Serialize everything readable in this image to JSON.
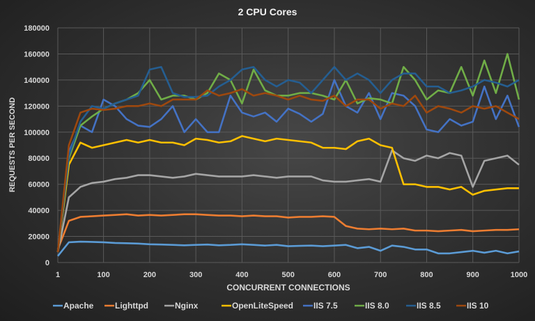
{
  "chart_data": {
    "type": "line",
    "title": "2 CPU Cores",
    "xlabel": "CONCURRENT CONNECTIONS",
    "ylabel": "REQUESTS PER SECOND",
    "xlim": [
      1,
      1000
    ],
    "ylim": [
      0,
      180000
    ],
    "x_ticks": [
      "1",
      "100",
      "200",
      "300",
      "400",
      "500",
      "600",
      "700",
      "800",
      "900",
      "1000"
    ],
    "y_ticks": [
      "0",
      "20000",
      "40000",
      "60000",
      "80000",
      "100000",
      "120000",
      "140000",
      "160000",
      "180000"
    ],
    "grid": true,
    "legend": "bottom",
    "x": [
      1,
      25,
      50,
      75,
      100,
      125,
      150,
      175,
      200,
      225,
      250,
      275,
      300,
      325,
      350,
      375,
      400,
      425,
      450,
      475,
      500,
      525,
      550,
      575,
      600,
      625,
      650,
      675,
      700,
      725,
      750,
      775,
      800,
      825,
      850,
      875,
      900,
      925,
      950,
      975,
      1000
    ],
    "series": [
      {
        "name": "Apache",
        "color": "#5b9bd5",
        "values": [
          5000,
          15500,
          16000,
          15800,
          15500,
          15000,
          14800,
          14500,
          14000,
          13800,
          13500,
          13200,
          13500,
          13800,
          13200,
          13500,
          14000,
          13500,
          13000,
          13500,
          12500,
          12800,
          13000,
          12500,
          13000,
          13500,
          11000,
          12000,
          9000,
          13000,
          12000,
          10000,
          10000,
          7000,
          7000,
          8000,
          9000,
          7500,
          9000,
          7000,
          8500
        ]
      },
      {
        "name": "Lighttpd",
        "color": "#ed7d31",
        "values": [
          10000,
          32000,
          35000,
          35500,
          36000,
          36500,
          37000,
          36000,
          36500,
          36000,
          36500,
          37000,
          37000,
          36500,
          36000,
          36000,
          35500,
          36000,
          35500,
          35500,
          34500,
          35000,
          35000,
          35500,
          35000,
          28000,
          26000,
          25500,
          26000,
          25500,
          26000,
          24500,
          24500,
          24000,
          24500,
          25000,
          24000,
          24500,
          25000,
          25000,
          25500
        ]
      },
      {
        "name": "Nginx",
        "color": "#a5a5a5",
        "values": [
          8000,
          50000,
          58000,
          61000,
          62000,
          64000,
          65000,
          67000,
          67000,
          66000,
          65000,
          66000,
          68000,
          67000,
          66000,
          66000,
          66000,
          67000,
          66000,
          65000,
          66000,
          66000,
          66000,
          63000,
          62000,
          62000,
          63000,
          64000,
          62000,
          86000,
          80000,
          78000,
          82000,
          80000,
          84000,
          82000,
          58000,
          78000,
          80000,
          82000,
          75000
        ]
      },
      {
        "name": "OpenLiteSpeed",
        "color": "#ffc000",
        "values": [
          8000,
          75000,
          92000,
          88000,
          90000,
          92000,
          94000,
          92000,
          94000,
          92000,
          92000,
          90000,
          95000,
          94000,
          92000,
          93000,
          97000,
          95000,
          93000,
          95000,
          94000,
          93000,
          92000,
          88000,
          88000,
          87000,
          93000,
          95000,
          90000,
          88000,
          60000,
          60000,
          58000,
          58000,
          56000,
          58000,
          52000,
          55000,
          56000,
          57000,
          57000
        ]
      },
      {
        "name": "IIS 7.5",
        "color": "#4472c4",
        "values": [
          8000,
          85000,
          105000,
          100000,
          125000,
          120000,
          110000,
          105000,
          104000,
          110000,
          120000,
          100000,
          110000,
          100000,
          100000,
          128000,
          115000,
          112000,
          115000,
          108000,
          118000,
          114000,
          108000,
          114000,
          140000,
          120000,
          115000,
          130000,
          110000,
          130000,
          128000,
          120000,
          102000,
          100000,
          110000,
          105000,
          108000,
          135000,
          110000,
          128000,
          104000
        ]
      },
      {
        "name": "IIS 8.0",
        "color": "#70ad47",
        "values": [
          8000,
          80000,
          105000,
          112000,
          118000,
          122000,
          125000,
          130000,
          140000,
          125000,
          128000,
          128000,
          125000,
          130000,
          145000,
          140000,
          122000,
          148000,
          132000,
          128000,
          128000,
          130000,
          130000,
          128000,
          125000,
          140000,
          122000,
          126000,
          125000,
          122000,
          150000,
          140000,
          125000,
          132000,
          130000,
          150000,
          128000,
          155000,
          130000,
          160000,
          125000
        ]
      },
      {
        "name": "IIS 8.5",
        "color": "#255e91",
        "values": [
          8000,
          82000,
          108000,
          120000,
          118000,
          122000,
          125000,
          128000,
          148000,
          150000,
          130000,
          127000,
          127000,
          128000,
          135000,
          140000,
          148000,
          150000,
          140000,
          135000,
          140000,
          138000,
          130000,
          140000,
          150000,
          140000,
          145000,
          140000,
          130000,
          140000,
          145000,
          145000,
          135000,
          135000,
          130000,
          132000,
          135000,
          140000,
          138000,
          135000,
          140000
        ]
      },
      {
        "name": "IIS 10",
        "color": "#9e480e",
        "values": [
          8000,
          90000,
          115000,
          118000,
          117000,
          118000,
          120000,
          120000,
          122000,
          120000,
          125000,
          125000,
          125000,
          132000,
          128000,
          130000,
          133000,
          128000,
          130000,
          128000,
          125000,
          128000,
          125000,
          124000,
          128000,
          120000,
          125000,
          125000,
          118000,
          122000,
          120000,
          128000,
          115000,
          120000,
          118000,
          115000,
          120000,
          118000,
          120000,
          115000,
          110000
        ]
      }
    ]
  }
}
